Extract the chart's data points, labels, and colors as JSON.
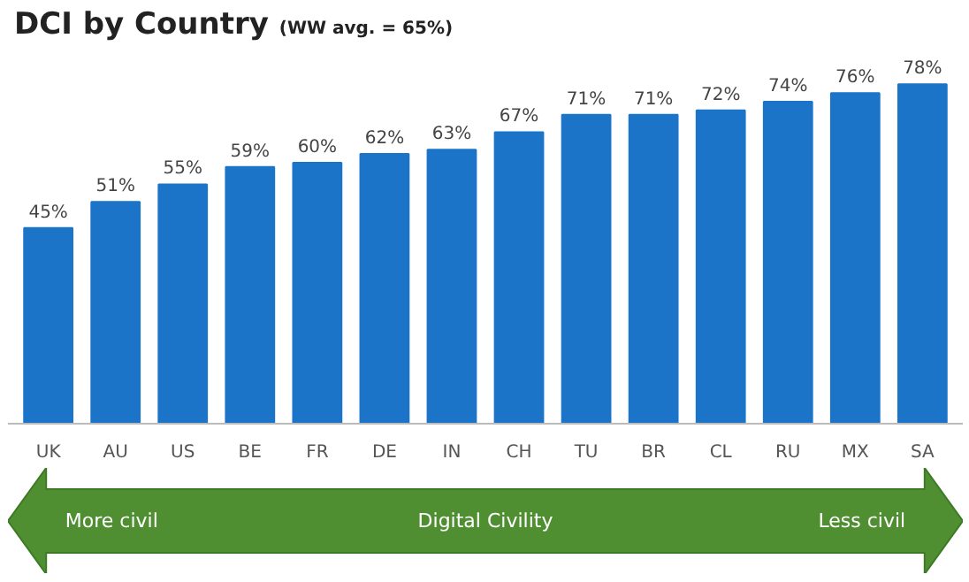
{
  "chart_data": {
    "type": "bar",
    "title": "DCI by Country",
    "subtitle": "(WW avg. = 65%)",
    "categories": [
      "UK",
      "AU",
      "US",
      "BE",
      "FR",
      "DE",
      "IN",
      "CH",
      "TU",
      "BR",
      "CL",
      "RU",
      "MX",
      "SA"
    ],
    "values": [
      45,
      51,
      55,
      59,
      60,
      62,
      63,
      67,
      71,
      71,
      72,
      74,
      76,
      78
    ],
    "value_labels": [
      "45%",
      "51%",
      "55%",
      "59%",
      "60%",
      "62%",
      "63%",
      "67%",
      "71%",
      "71%",
      "72%",
      "74%",
      "76%",
      "78%"
    ],
    "color": "#1b74c8",
    "grid": false,
    "annotations": [
      "More civil",
      "Digital Civility",
      "Less civil"
    ]
  }
}
